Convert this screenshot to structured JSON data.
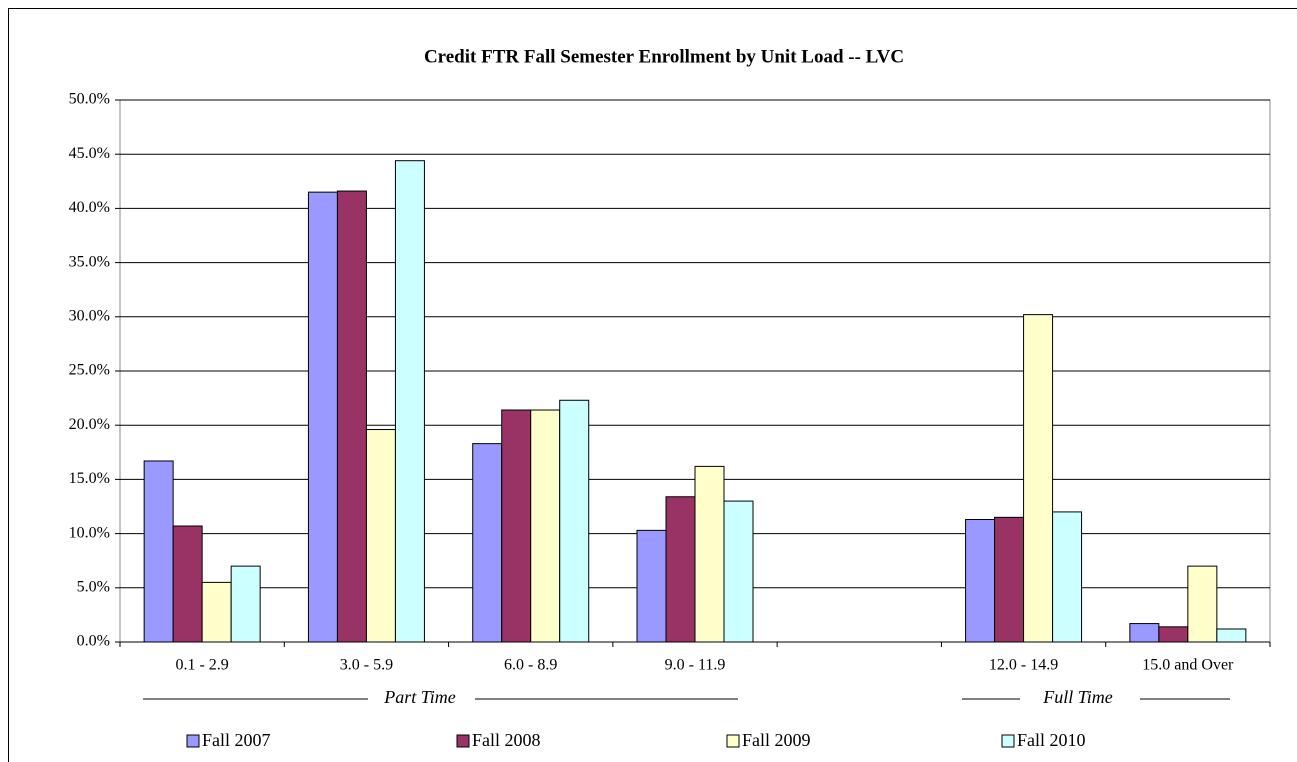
{
  "chart_data": {
    "type": "bar",
    "title": "Credit FTR Fall Semester Enrollment by Unit Load -- LVC",
    "categories": [
      "0.1 - 2.9",
      "3.0 - 5.9",
      "6.0 - 8.9",
      "9.0 - 11.9",
      null,
      "12.0 - 14.9",
      "15.0 and Over"
    ],
    "series": [
      {
        "name": "Fall 2007",
        "color": "#9999ff",
        "values": [
          16.7,
          41.5,
          18.3,
          10.3,
          null,
          11.3,
          1.7
        ]
      },
      {
        "name": "Fall 2008",
        "color": "#993366",
        "values": [
          10.7,
          41.6,
          21.4,
          13.4,
          null,
          11.5,
          1.4
        ]
      },
      {
        "name": "Fall 2009",
        "color": "#ffffcc",
        "values": [
          5.5,
          19.6,
          21.4,
          16.2,
          null,
          30.2,
          7.0
        ]
      },
      {
        "name": "Fall 2010",
        "color": "#ccffff",
        "values": [
          7.0,
          44.4,
          22.3,
          13.0,
          null,
          12.0,
          1.2
        ]
      }
    ],
    "annotations": [
      "Part Time",
      "Full Time"
    ],
    "ylim": [
      0,
      50
    ],
    "yticks": [
      {
        "value": 0,
        "label": "0.0%"
      },
      {
        "value": 5,
        "label": "5.0%"
      },
      {
        "value": 10,
        "label": "10.0%"
      },
      {
        "value": 15,
        "label": "15.0%"
      },
      {
        "value": 20,
        "label": "20.0%"
      },
      {
        "value": 25,
        "label": "25.0%"
      },
      {
        "value": 30,
        "label": "30.0%"
      },
      {
        "value": 35,
        "label": "35.0%"
      },
      {
        "value": 40,
        "label": "40.0%"
      },
      {
        "value": 45,
        "label": "45.0%"
      },
      {
        "value": 50,
        "label": "50.0%"
      }
    ],
    "grid": true,
    "legend": "bottom"
  }
}
